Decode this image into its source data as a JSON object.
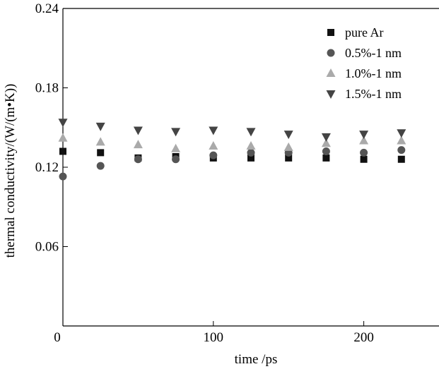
{
  "chart_data": {
    "type": "scatter",
    "xlabel": "time /ps",
    "ylabel": "thermal conductivity/(W/(m•K))",
    "xlim": [
      0,
      250
    ],
    "ylim": [
      0,
      0.24
    ],
    "xticks": [
      0,
      100,
      200
    ],
    "yticks": [
      0.06,
      0.12,
      0.18,
      0.24
    ],
    "xtick_labels": [
      "0",
      "100",
      "200"
    ],
    "ytick_labels": [
      "0.06",
      "0.12",
      "0.18",
      "0.24"
    ],
    "grid": false,
    "legend_position": "top-right",
    "series": [
      {
        "name": "pure Ar",
        "marker": "square",
        "color": "#111111",
        "x": [
          0,
          25,
          50,
          75,
          100,
          125,
          150,
          175,
          200,
          225
        ],
        "y": [
          0.132,
          0.131,
          0.127,
          0.128,
          0.127,
          0.127,
          0.127,
          0.127,
          0.126,
          0.126
        ]
      },
      {
        "name": "0.5%-1 nm",
        "marker": "circle",
        "color": "#555555",
        "x": [
          0,
          25,
          50,
          75,
          100,
          125,
          150,
          175,
          200,
          225
        ],
        "y": [
          0.113,
          0.121,
          0.126,
          0.126,
          0.129,
          0.131,
          0.131,
          0.132,
          0.131,
          0.133
        ]
      },
      {
        "name": "1.0%-1 nm",
        "marker": "triangle-up",
        "color": "#aaaaaa",
        "x": [
          0,
          25,
          50,
          75,
          100,
          125,
          150,
          175,
          200,
          225
        ],
        "y": [
          0.142,
          0.139,
          0.137,
          0.134,
          0.136,
          0.136,
          0.135,
          0.138,
          0.14,
          0.14
        ]
      },
      {
        "name": "1.5%-1 nm",
        "marker": "triangle-down",
        "color": "#444444",
        "x": [
          0,
          25,
          50,
          75,
          100,
          125,
          150,
          175,
          200,
          225
        ],
        "y": [
          0.154,
          0.151,
          0.148,
          0.147,
          0.148,
          0.147,
          0.145,
          0.143,
          0.145,
          0.146
        ]
      }
    ]
  }
}
